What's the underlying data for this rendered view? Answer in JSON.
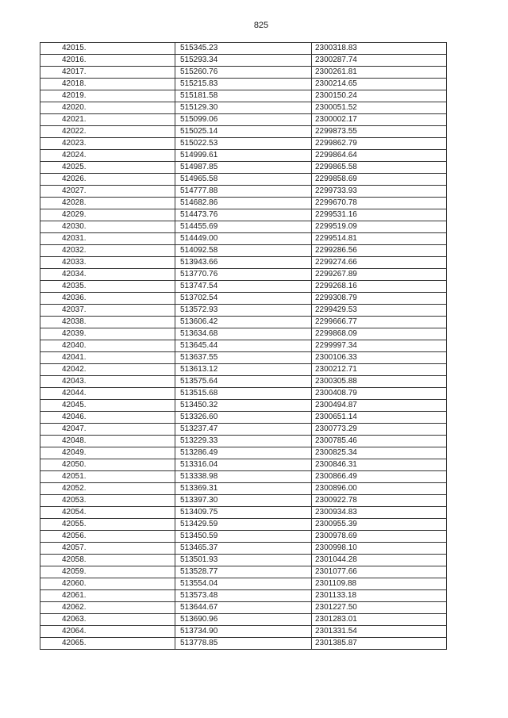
{
  "page_number": "825",
  "rows": [
    [
      "42015.",
      "515345.23",
      "2300318.83"
    ],
    [
      "42016.",
      "515293.34",
      "2300287.74"
    ],
    [
      "42017.",
      "515260.76",
      "2300261.81"
    ],
    [
      "42018.",
      "515215.83",
      "2300214.65"
    ],
    [
      "42019.",
      "515181.58",
      "2300150.24"
    ],
    [
      "42020.",
      "515129.30",
      "2300051.52"
    ],
    [
      "42021.",
      "515099.06",
      "2300002.17"
    ],
    [
      "42022.",
      "515025.14",
      "2299873.55"
    ],
    [
      "42023.",
      "515022.53",
      "2299862.79"
    ],
    [
      "42024.",
      "514999.61",
      "2299864.64"
    ],
    [
      "42025.",
      "514987.85",
      "2299865.58"
    ],
    [
      "42026.",
      "514965.58",
      "2299858.69"
    ],
    [
      "42027.",
      "514777.88",
      "2299733.93"
    ],
    [
      "42028.",
      "514682.86",
      "2299670.78"
    ],
    [
      "42029.",
      "514473.76",
      "2299531.16"
    ],
    [
      "42030.",
      "514455.69",
      "2299519.09"
    ],
    [
      "42031.",
      "514449.00",
      "2299514.81"
    ],
    [
      "42032.",
      "514092.58",
      "2299286.56"
    ],
    [
      "42033.",
      "513943.66",
      "2299274.66"
    ],
    [
      "42034.",
      "513770.76",
      "2299267.89"
    ],
    [
      "42035.",
      "513747.54",
      "2299268.16"
    ],
    [
      "42036.",
      "513702.54",
      "2299308.79"
    ],
    [
      "42037.",
      "513572.93",
      "2299429.53"
    ],
    [
      "42038.",
      "513606.42",
      "2299666.77"
    ],
    [
      "42039.",
      "513634.68",
      "2299868.09"
    ],
    [
      "42040.",
      "513645.44",
      "2299997.34"
    ],
    [
      "42041.",
      "513637.55",
      "2300106.33"
    ],
    [
      "42042.",
      "513613.12",
      "2300212.71"
    ],
    [
      "42043.",
      "513575.64",
      "2300305.88"
    ],
    [
      "42044.",
      "513515.68",
      "2300408.79"
    ],
    [
      "42045.",
      "513450.32",
      "2300494.87"
    ],
    [
      "42046.",
      "513326.60",
      "2300651.14"
    ],
    [
      "42047.",
      "513237.47",
      "2300773.29"
    ],
    [
      "42048.",
      "513229.33",
      "2300785.46"
    ],
    [
      "42049.",
      "513286.49",
      "2300825.34"
    ],
    [
      "42050.",
      "513316.04",
      "2300846.31"
    ],
    [
      "42051.",
      "513338.98",
      "2300866.49"
    ],
    [
      "42052.",
      "513369.31",
      "2300896.00"
    ],
    [
      "42053.",
      "513397.30",
      "2300922.78"
    ],
    [
      "42054.",
      "513409.75",
      "2300934.83"
    ],
    [
      "42055.",
      "513429.59",
      "2300955.39"
    ],
    [
      "42056.",
      "513450.59",
      "2300978.69"
    ],
    [
      "42057.",
      "513465.37",
      "2300998.10"
    ],
    [
      "42058.",
      "513501.93",
      "2301044.28"
    ],
    [
      "42059.",
      "513528.77",
      "2301077.66"
    ],
    [
      "42060.",
      "513554.04",
      "2301109.88"
    ],
    [
      "42061.",
      "513573.48",
      "2301133.18"
    ],
    [
      "42062.",
      "513644.67",
      "2301227.50"
    ],
    [
      "42063.",
      "513690.96",
      "2301283.01"
    ],
    [
      "42064.",
      "513734.90",
      "2301331.54"
    ],
    [
      "42065.",
      "513778.85",
      "2301385.87"
    ]
  ]
}
